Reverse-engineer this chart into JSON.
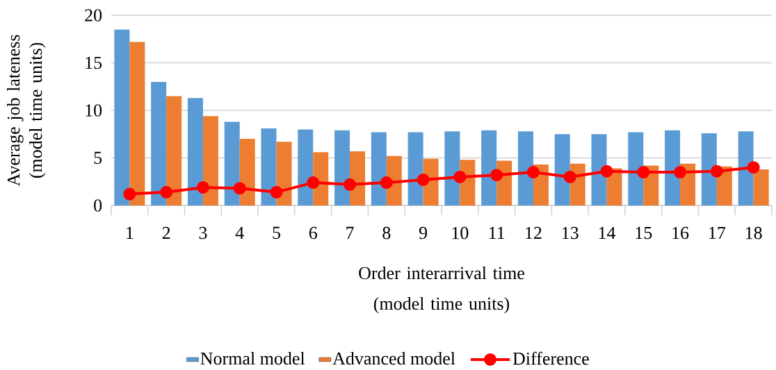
{
  "chart_data": {
    "type": "bar",
    "xlabel": "Order interarrival time (model time units)",
    "ylabel": "Average job lateness (model time units)",
    "categories": [
      "1",
      "2",
      "3",
      "4",
      "5",
      "6",
      "7",
      "8",
      "9",
      "10",
      "11",
      "12",
      "13",
      "14",
      "15",
      "16",
      "17",
      "18"
    ],
    "series": [
      {
        "name": "Normal model",
        "color": "#5b9bd5",
        "values": [
          18.5,
          13.0,
          11.3,
          8.8,
          8.1,
          8.0,
          7.9,
          7.7,
          7.7,
          7.8,
          7.9,
          7.8,
          7.5,
          7.5,
          7.7,
          7.9,
          7.6,
          7.8
        ]
      },
      {
        "name": "Advanced model",
        "color": "#ed7d31",
        "values": [
          17.2,
          11.5,
          9.4,
          7.0,
          6.7,
          5.6,
          5.7,
          5.2,
          4.9,
          4.8,
          4.7,
          4.3,
          4.4,
          3.9,
          4.2,
          4.4,
          4.1,
          3.8
        ]
      },
      {
        "name": "Difference",
        "type": "line",
        "color": "#ff0000",
        "marker": "circle",
        "values": [
          1.2,
          1.4,
          1.9,
          1.8,
          1.4,
          2.4,
          2.2,
          2.4,
          2.7,
          3.0,
          3.2,
          3.5,
          3.0,
          3.6,
          3.5,
          3.5,
          3.6,
          4.0
        ]
      }
    ],
    "ylim": [
      0,
      20
    ],
    "yticks": [
      0,
      5,
      10,
      15,
      20
    ],
    "grid": "y",
    "legend": "bottom"
  }
}
